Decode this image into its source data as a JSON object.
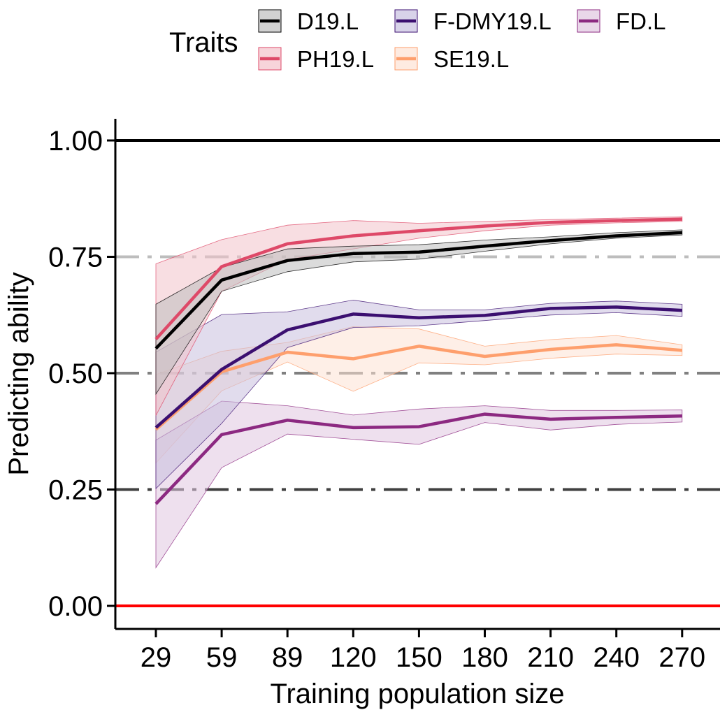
{
  "chart_data": {
    "type": "line",
    "title": "",
    "xlabel": "Training population size",
    "ylabel": "Predicting ability",
    "x": [
      29,
      59,
      89,
      120,
      150,
      180,
      210,
      240,
      270
    ],
    "ylim": [
      -0.05,
      1.05
    ],
    "y_ticks": [
      0.0,
      0.25,
      0.5,
      0.75,
      1.0
    ],
    "y_tick_labels": [
      "0.00",
      "0.25",
      "0.50",
      "0.75",
      "1.00"
    ],
    "legend_title": "Traits",
    "legend_position": "top",
    "series": [
      {
        "name": "D19.L",
        "color": "#000000",
        "fill": "#bdbdbd",
        "values": [
          0.553,
          0.7,
          0.742,
          0.757,
          0.76,
          0.773,
          0.785,
          0.795,
          0.802
        ],
        "lower": [
          0.455,
          0.676,
          0.718,
          0.739,
          0.745,
          0.762,
          0.778,
          0.79,
          0.797
        ],
        "upper": [
          0.648,
          0.727,
          0.767,
          0.773,
          0.776,
          0.786,
          0.793,
          0.802,
          0.808
        ]
      },
      {
        "name": "F-DMY19.L",
        "color": "#3b0f70",
        "fill": "#c8c0df",
        "values": [
          0.383,
          0.508,
          0.593,
          0.627,
          0.619,
          0.624,
          0.639,
          0.642,
          0.635
        ],
        "lower": [
          0.252,
          0.392,
          0.555,
          0.598,
          0.602,
          0.613,
          0.625,
          0.63,
          0.622
        ],
        "upper": [
          0.545,
          0.626,
          0.632,
          0.657,
          0.636,
          0.636,
          0.65,
          0.655,
          0.648
        ]
      },
      {
        "name": "FD.L",
        "color": "#8c2981",
        "fill": "#e0c6e0",
        "values": [
          0.219,
          0.368,
          0.399,
          0.383,
          0.385,
          0.412,
          0.401,
          0.405,
          0.408
        ],
        "lower": [
          0.082,
          0.297,
          0.369,
          0.358,
          0.347,
          0.394,
          0.378,
          0.39,
          0.395
        ],
        "upper": [
          0.356,
          0.44,
          0.43,
          0.41,
          0.423,
          0.43,
          0.42,
          0.42,
          0.421
        ]
      },
      {
        "name": "PH19.L",
        "color": "#de4968",
        "fill": "#f3c2cb",
        "values": [
          0.573,
          0.729,
          0.778,
          0.795,
          0.806,
          0.816,
          0.824,
          0.828,
          0.831
        ],
        "lower": [
          0.409,
          0.676,
          0.744,
          0.767,
          0.79,
          0.806,
          0.818,
          0.823,
          0.826
        ],
        "upper": [
          0.735,
          0.787,
          0.818,
          0.828,
          0.822,
          0.826,
          0.83,
          0.833,
          0.836
        ]
      },
      {
        "name": "SE19.L",
        "color": "#fe9f6d",
        "fill": "#fde2d4",
        "values": [
          0.379,
          0.503,
          0.545,
          0.531,
          0.558,
          0.536,
          0.551,
          0.561,
          0.549
        ],
        "lower": [
          0.307,
          0.462,
          0.524,
          0.461,
          0.522,
          0.518,
          0.532,
          0.541,
          0.538
        ],
        "upper": [
          0.497,
          0.547,
          0.566,
          0.6,
          0.595,
          0.558,
          0.572,
          0.581,
          0.561
        ]
      }
    ],
    "reference_lines": [
      {
        "y": 1.0,
        "color": "#000000",
        "style": "solid"
      },
      {
        "y": 0.75,
        "color": "#bdbdbd",
        "style": "dashdot"
      },
      {
        "y": 0.5,
        "color": "#808080",
        "style": "dashdot"
      },
      {
        "y": 0.25,
        "color": "#404040",
        "style": "dashdot"
      },
      {
        "y": 0.0,
        "color": "#ff0000",
        "style": "solid"
      }
    ]
  }
}
